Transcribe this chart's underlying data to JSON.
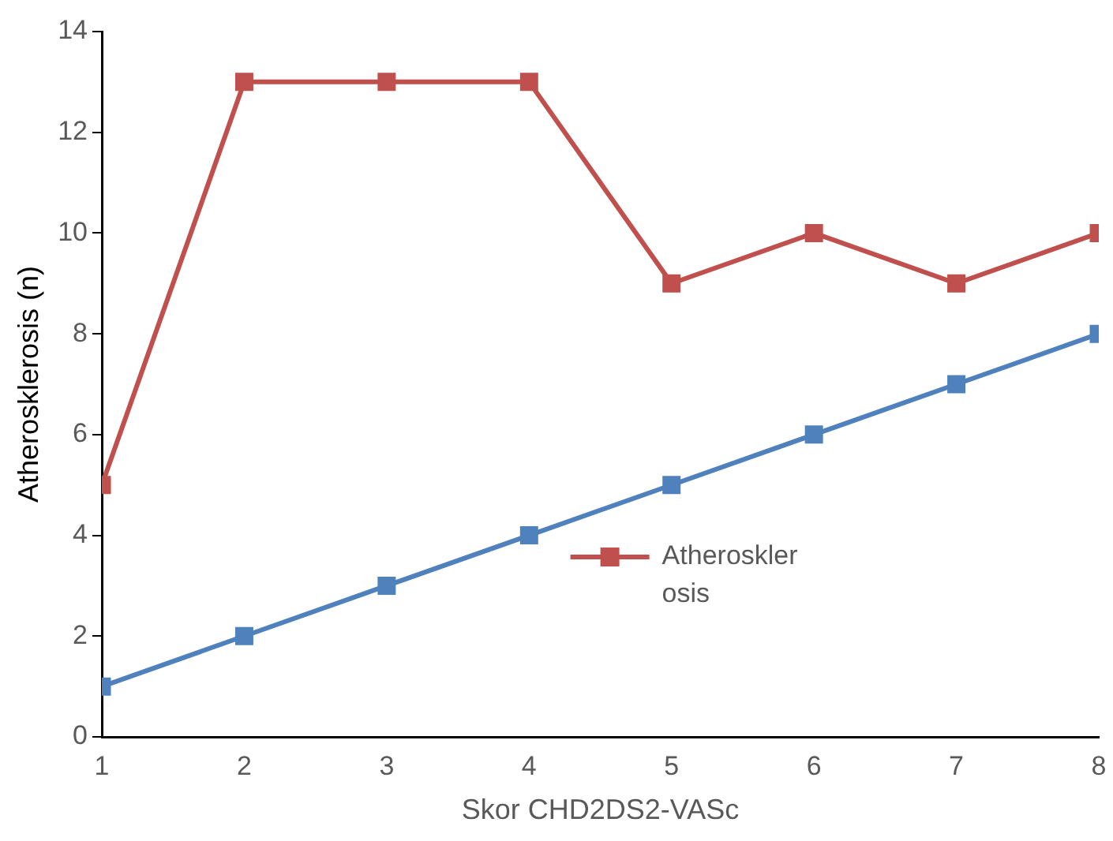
{
  "chart_data": {
    "type": "line",
    "xlabel": "Skor CHD2DS2-VASc",
    "ylabel": "Atherosklerosis (n)",
    "x": [
      1,
      2,
      3,
      4,
      5,
      6,
      7,
      8
    ],
    "series": [
      {
        "color": "#4f81bd",
        "values": [
          1,
          2,
          3,
          4,
          5,
          6,
          7,
          8
        ]
      },
      {
        "name": "Atherosklerosis",
        "color": "#c0504d",
        "values": [
          5,
          13,
          13,
          13,
          9,
          10,
          9,
          10
        ]
      }
    ],
    "xlim": [
      1,
      8
    ],
    "xticks": [
      1,
      2,
      3,
      4,
      5,
      6,
      7,
      8
    ],
    "ylim": [
      0,
      14
    ],
    "yticks": [
      0,
      2,
      4,
      6,
      8,
      10,
      12,
      14
    ],
    "grid": false,
    "legend": "center",
    "marker": "square",
    "line_style": "solid"
  }
}
